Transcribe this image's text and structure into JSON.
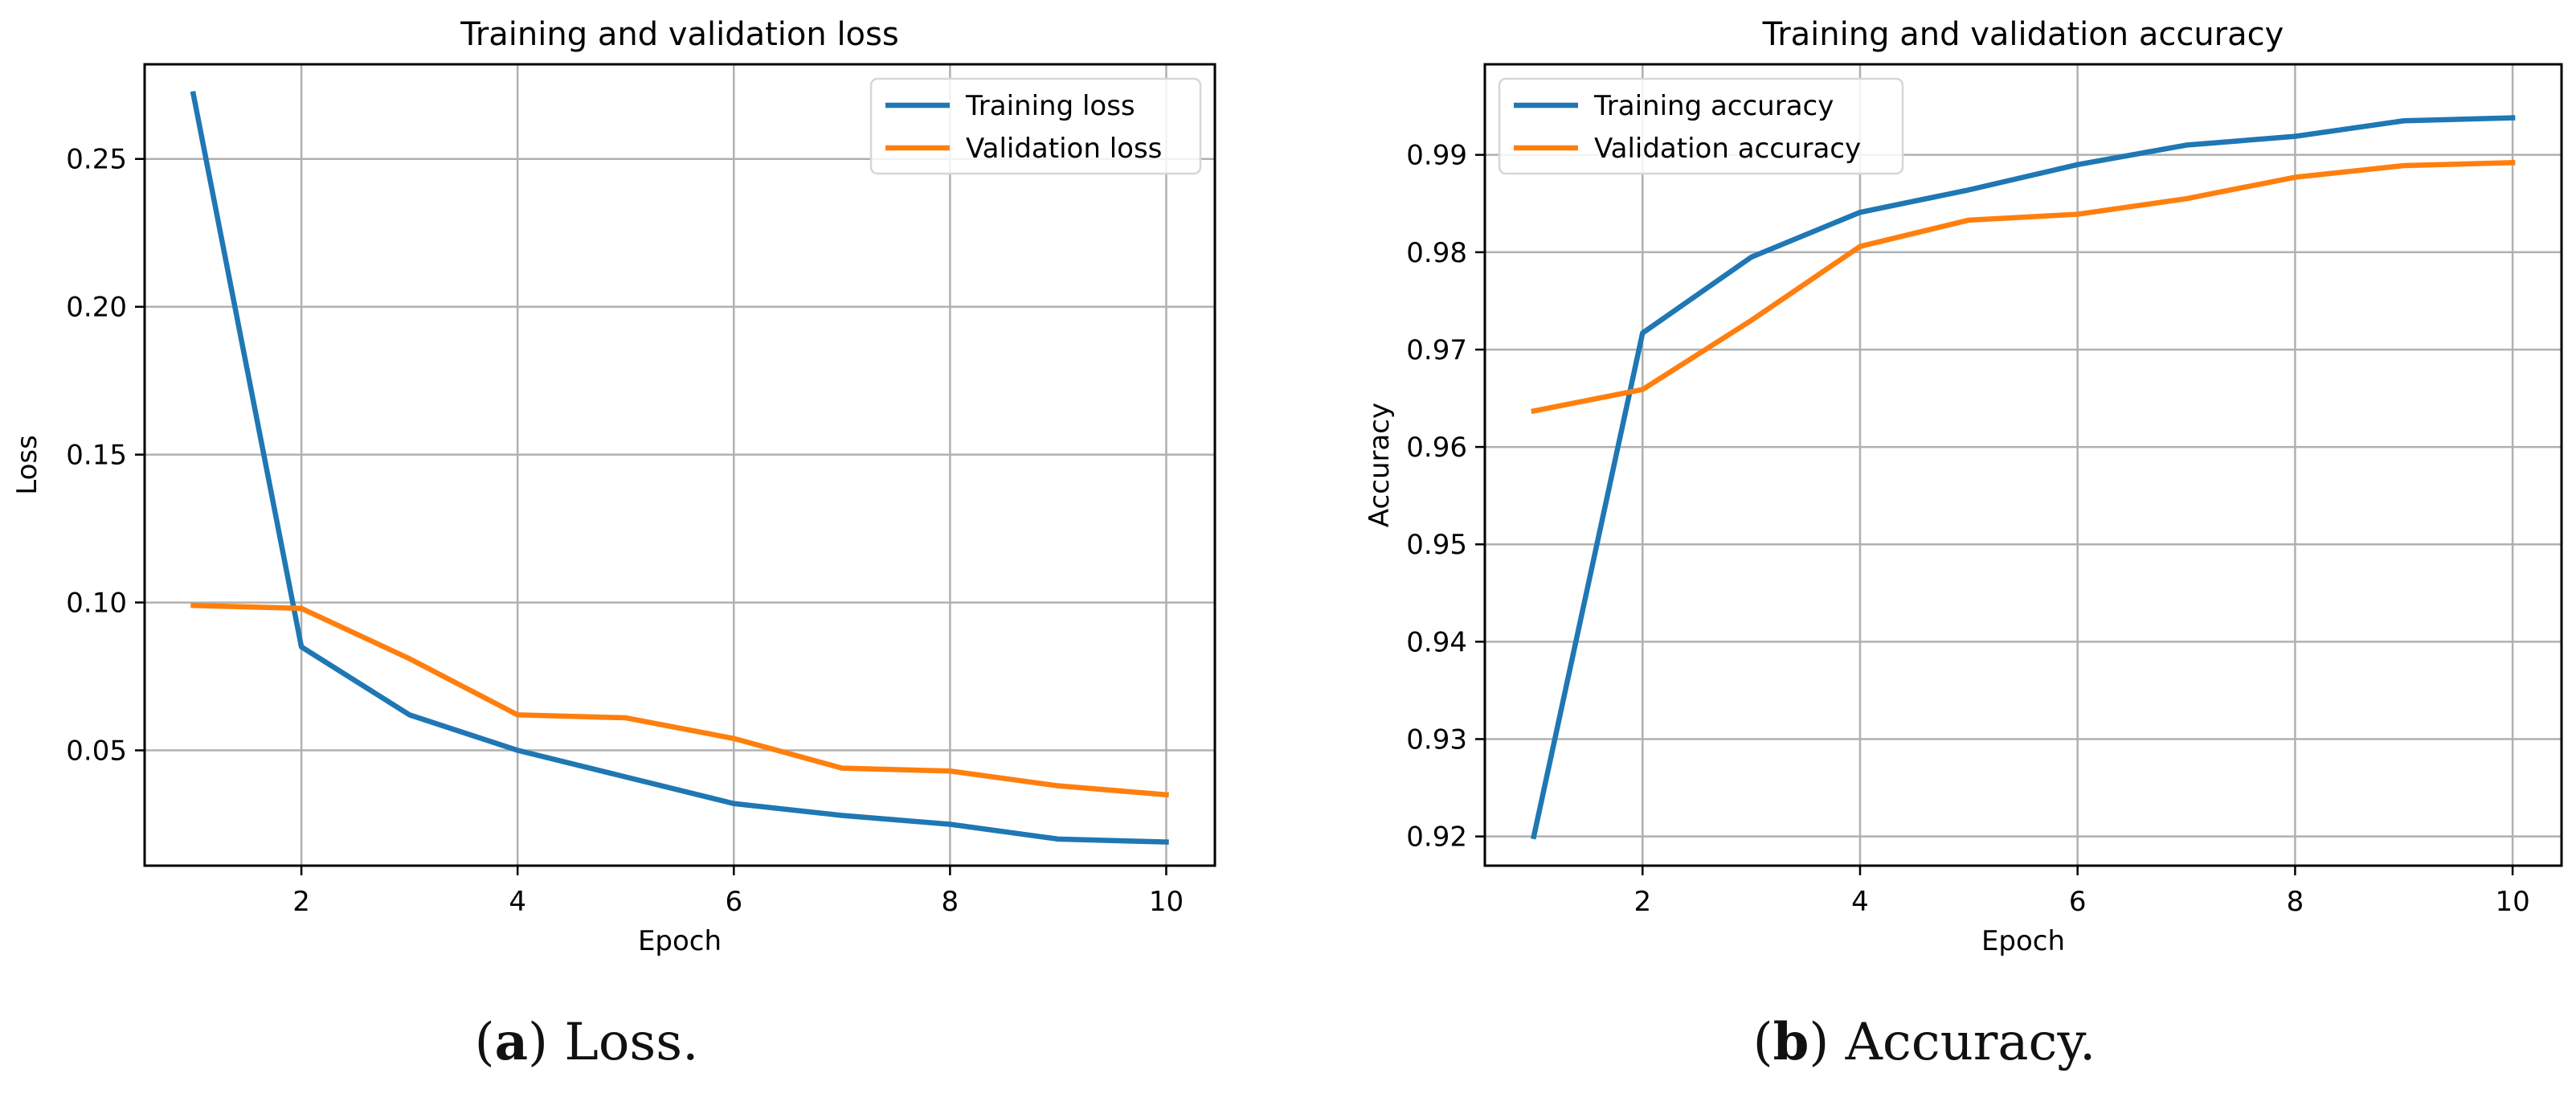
{
  "chart_data": [
    {
      "type": "line",
      "title": "Training and validation loss",
      "xlabel": "Epoch",
      "ylabel": "Loss",
      "x": [
        1,
        2,
        3,
        4,
        5,
        6,
        7,
        8,
        9,
        10
      ],
      "xlim": [
        0.55,
        10.45
      ],
      "ylim": [
        0.011,
        0.282
      ],
      "xticks": [
        2,
        4,
        6,
        8,
        10
      ],
      "xtick_labels": [
        "2",
        "4",
        "6",
        "8",
        "10"
      ],
      "yticks": [
        0.05,
        0.1,
        0.15,
        0.2,
        0.25
      ],
      "ytick_labels": [
        "0.05",
        "0.10",
        "0.15",
        "0.20",
        "0.25"
      ],
      "grid": true,
      "legend_position": "top-right",
      "series": [
        {
          "name": "Training loss",
          "color": "#1f77b4",
          "values": [
            0.272,
            0.085,
            0.062,
            0.05,
            0.041,
            0.032,
            0.028,
            0.025,
            0.02,
            0.019
          ]
        },
        {
          "name": "Validation loss",
          "color": "#ff7f0e",
          "values": [
            0.099,
            0.098,
            0.081,
            0.062,
            0.061,
            0.054,
            0.044,
            0.043,
            0.038,
            0.035
          ]
        }
      ]
    },
    {
      "type": "line",
      "title": "Training and validation accuracy",
      "xlabel": "Epoch",
      "ylabel": "Accuracy",
      "x": [
        1,
        2,
        3,
        4,
        5,
        6,
        7,
        8,
        9,
        10
      ],
      "xlim": [
        0.55,
        10.45
      ],
      "ylim": [
        0.917,
        0.9993
      ],
      "xticks": [
        2,
        4,
        6,
        8,
        10
      ],
      "xtick_labels": [
        "2",
        "4",
        "6",
        "8",
        "10"
      ],
      "yticks": [
        0.92,
        0.93,
        0.94,
        0.95,
        0.96,
        0.97,
        0.98,
        0.99
      ],
      "ytick_labels": [
        "0.92",
        "0.93",
        "0.94",
        "0.95",
        "0.96",
        "0.97",
        "0.98",
        "0.99"
      ],
      "grid": true,
      "legend_position": "top-left",
      "series": [
        {
          "name": "Training accuracy",
          "color": "#1f77b4",
          "values": [
            0.92,
            0.9717,
            0.9795,
            0.9841,
            0.9864,
            0.989,
            0.991,
            0.9919,
            0.9935,
            0.9938
          ]
        },
        {
          "name": "Validation accuracy",
          "color": "#ff7f0e",
          "values": [
            0.9637,
            0.9659,
            0.973,
            0.9806,
            0.9833,
            0.9839,
            0.9855,
            0.9877,
            0.9889,
            0.9892
          ]
        }
      ]
    }
  ],
  "captions": [
    {
      "label": "(a)",
      "letter": "a",
      "text": "Loss."
    },
    {
      "label": "(b)",
      "letter": "b",
      "text": "Accuracy."
    }
  ]
}
